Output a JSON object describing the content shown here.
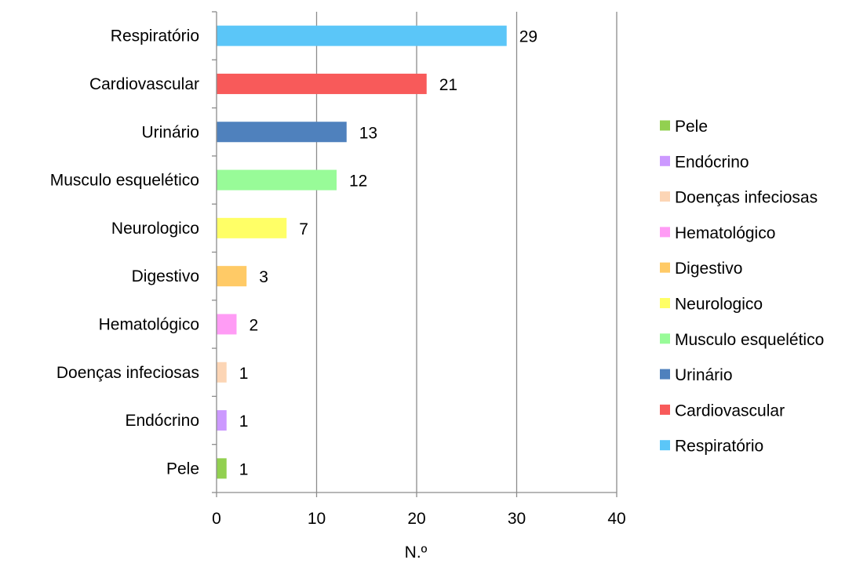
{
  "chart_data": {
    "type": "bar",
    "orientation": "horizontal",
    "categories": [
      "Respiratório",
      "Cardiovascular",
      "Urinário",
      "Musculo esquelético",
      "Neurologico",
      "Digestivo",
      "Hematológico",
      "Doenças infeciosas",
      "Endócrino",
      "Pele"
    ],
    "values": [
      29,
      21,
      13,
      12,
      7,
      3,
      2,
      1,
      1,
      1
    ],
    "colors": [
      "#5BC6F8",
      "#F85A5A",
      "#4F81BD",
      "#98FB98",
      "#FFFF66",
      "#FFCA66",
      "#FF9CF5",
      "#FCD5B5",
      "#CC99FF",
      "#92D050"
    ],
    "xlabel": "N.º",
    "xlim": [
      0,
      40
    ],
    "xticks": [
      0,
      10,
      20,
      30,
      40
    ],
    "grid": "vertical",
    "legend_position": "right",
    "legend": [
      "Pele",
      "Endócrino",
      "Doenças infeciosas",
      "Hematológico",
      "Digestivo",
      "Neurologico",
      "Musculo esquelético",
      "Urinário",
      "Cardiovascular",
      "Respiratório"
    ]
  }
}
